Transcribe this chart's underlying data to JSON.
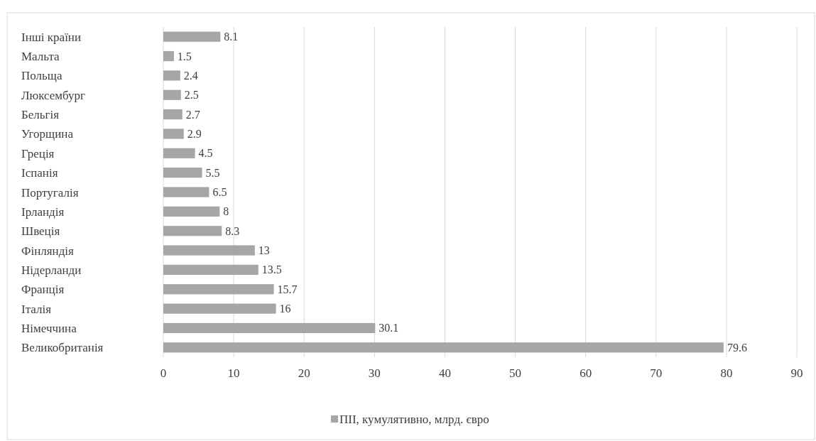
{
  "chart_data": {
    "type": "bar",
    "orientation": "horizontal",
    "categories": [
      "Інші країни",
      "Мальта",
      "Польща",
      "Люксембург",
      "Бельгія",
      "Угорщина",
      "Греція",
      "Іспанія",
      "Португалія",
      "Ірландія",
      "Швеція",
      "Фінляндія",
      "Нідерланди",
      "Франція",
      "Італія",
      "Німеччина",
      "Великобританія"
    ],
    "series": [
      {
        "name": "ПІІ, кумулятивно, млрд. євро",
        "color": "#a6a6a6",
        "values": [
          8.1,
          1.5,
          2.4,
          2.5,
          2.7,
          2.9,
          4.5,
          5.5,
          6.5,
          8,
          8.3,
          13,
          13.5,
          15.7,
          16,
          30.1,
          79.6
        ]
      }
    ],
    "xlim": [
      0,
      90
    ],
    "xticks": [
      0,
      10,
      20,
      30,
      40,
      50,
      60,
      70,
      80,
      90
    ],
    "grid": "x",
    "data_labels": true,
    "legend": "bottom"
  }
}
